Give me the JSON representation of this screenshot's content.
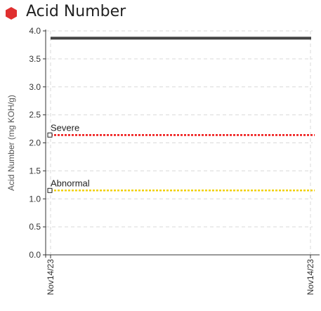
{
  "header": {
    "title": "Acid Number",
    "status_color": "#e03030",
    "status_icon": "hexagon-status-icon"
  },
  "chart_data": {
    "type": "line",
    "title": "Acid Number",
    "ylabel": "Acid Number (mg KOH/g)",
    "xlabel": "",
    "ylim": [
      0,
      4
    ],
    "yticks": [
      "0.0",
      "0.5",
      "1.0",
      "1.5",
      "2.0",
      "2.5",
      "3.0",
      "3.5",
      "4.0"
    ],
    "x_tick_labels": [
      "Nov14/23",
      "Nov14/23"
    ],
    "grid": true,
    "series": [
      {
        "value": 3.87,
        "color": "#444444"
      }
    ],
    "thresholds": [
      {
        "name": "Severe",
        "value": 2.14,
        "color": "#ee1111"
      },
      {
        "name": "Abnormal",
        "value": 1.15,
        "color": "#f2d000"
      }
    ]
  }
}
